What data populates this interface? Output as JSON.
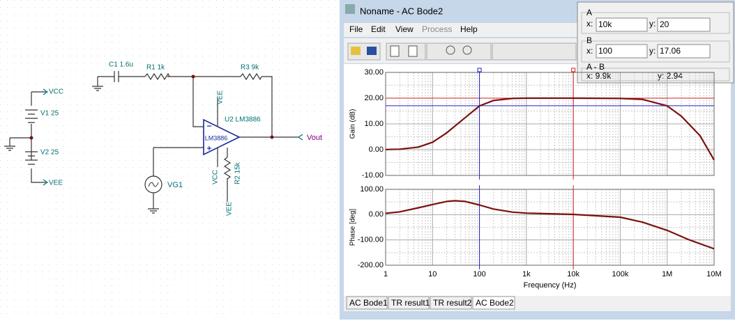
{
  "schematic": {
    "labels": [
      "VCC",
      "V1 25",
      "V2 25",
      "VEE",
      "C1 1.6u",
      "R1 1k",
      "R3 9k",
      "U2 LM3886",
      "VEE",
      "LM3886",
      "VCC",
      "R2 15k",
      "VEE",
      "VG1",
      "Vout"
    ]
  },
  "window": {
    "title": "Noname - AC Bode2",
    "menu": [
      "File",
      "Edit",
      "View",
      "Process",
      "Help"
    ],
    "tabs": [
      "AC Bode1",
      "TR result1",
      "TR result2",
      "AC Bode2"
    ]
  },
  "cursor_panel": {
    "x_label": "x:",
    "y_label": "y:",
    "a": {
      "name": "A",
      "x": {
        "value": 10000,
        "label": "10k"
      },
      "y": 20
    },
    "b": {
      "name": "B",
      "x": {
        "value": 100,
        "label": "100"
      },
      "y": 17.06
    },
    "diff": {
      "name": "A - B",
      "x": "x:  9.9k",
      "y": "y: 2.94"
    }
  },
  "chart_data": [
    {
      "type": "line",
      "ylabel": "Gain (dB)",
      "x": [
        1,
        2,
        5,
        10,
        20,
        50,
        100,
        200,
        500,
        1000,
        10000,
        100000,
        300000,
        1000000,
        2000000,
        5000000,
        10000000
      ],
      "values": [
        0.05,
        0.2,
        1.0,
        2.9,
        6.5,
        12.5,
        17,
        19.1,
        19.9,
        20,
        20,
        19.9,
        19.5,
        17,
        13,
        5.5,
        -4
      ],
      "color": "#7a1010",
      "log_x": true,
      "grid": true,
      "xlim": [
        1,
        10000000
      ],
      "xticks": [
        1,
        10,
        100,
        1000,
        10000,
        100000,
        1000000,
        10000000
      ],
      "ylim": [
        -10,
        30
      ],
      "yticks": [
        {
          "value": 30,
          "label": "30.00"
        },
        {
          "value": 20,
          "label": "20.00"
        },
        {
          "value": 10,
          "label": "10.00"
        },
        {
          "value": 0,
          "label": "0.00"
        },
        {
          "value": -10,
          "label": "-10.00"
        }
      ]
    },
    {
      "type": "line",
      "ylabel": "Phase [deg]",
      "xlabel": "Frequency (Hz)",
      "x": [
        1,
        2,
        5,
        10,
        20,
        30,
        50,
        100,
        200,
        500,
        1000,
        10000,
        100000,
        300000,
        1000000,
        3000000,
        10000000
      ],
      "values": [
        5,
        11,
        27,
        40,
        52,
        55,
        52,
        38,
        22,
        10,
        6,
        1,
        -10,
        -30,
        -62,
        -100,
        -135
      ],
      "color": "#7a1010",
      "log_x": true,
      "grid": true,
      "xlim": [
        1,
        10000000
      ],
      "xticks": [
        1,
        10,
        100,
        {
          "value": 1000,
          "label": "1k"
        },
        {
          "value": 10000,
          "label": "10k"
        },
        {
          "value": 100000,
          "label": "100k"
        },
        {
          "value": 1000000,
          "label": "1M"
        },
        {
          "value": 10000000,
          "label": "10M"
        }
      ],
      "ylim": [
        -200,
        100
      ],
      "yticks": [
        {
          "value": 100,
          "label": "100.00"
        },
        {
          "value": 0,
          "label": "0.00"
        },
        {
          "value": -100,
          "label": "-100.00"
        },
        {
          "value": -200,
          "label": "-200.00"
        }
      ]
    }
  ]
}
